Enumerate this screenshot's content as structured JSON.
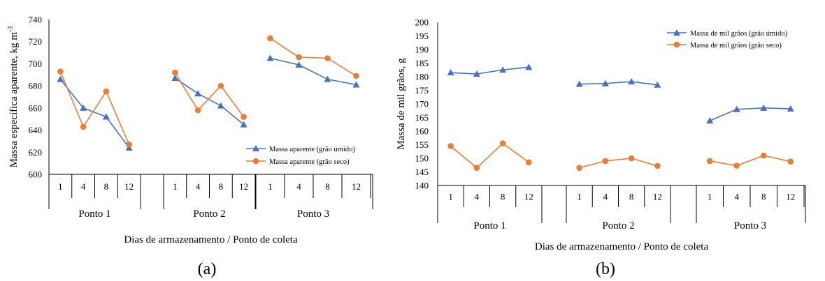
{
  "chart_data": [
    {
      "type": "line",
      "panel_label": "(a)",
      "ylabel": "Massa específica aparente, kg m",
      "ylabel_sup": "-3",
      "xlabel": "Dias de armazenamento / Ponto de coleta",
      "ylim": [
        600,
        740
      ],
      "yticks": [
        600,
        620,
        640,
        660,
        680,
        700,
        720,
        740
      ],
      "day_labels": [
        "1",
        "4",
        "8",
        "12"
      ],
      "groups": [
        "Ponto 1",
        "Ponto 2",
        "Ponto 3"
      ],
      "legend_position": "lower-right",
      "series": [
        {
          "name": "Massa aparente (grão úmido)",
          "color": "#4472C4",
          "marker": "triangle",
          "values": [
            [
              686,
              660,
              652,
              624
            ],
            [
              687,
              673,
              662,
              645
            ],
            [
              705,
              699,
              686,
              681
            ]
          ]
        },
        {
          "name": "Massa aparente (grão seco)",
          "color": "#ED7D31",
          "marker": "circle",
          "values": [
            [
              693,
              643,
              675,
              627
            ],
            [
              692,
              658,
              680,
              652
            ],
            [
              723,
              706,
              705,
              689
            ]
          ]
        }
      ]
    },
    {
      "type": "line",
      "panel_label": "(b)",
      "ylabel": "Massa de mil grãos, g",
      "xlabel": "Dias de armazenamento / Ponto de coleta",
      "ylim": [
        140,
        200
      ],
      "yticks": [
        140,
        145,
        150,
        155,
        160,
        165,
        170,
        175,
        180,
        185,
        190,
        195,
        200
      ],
      "day_labels": [
        "1",
        "4",
        "8",
        "12"
      ],
      "groups": [
        "Ponto 1",
        "Ponto 2",
        "Ponto 3"
      ],
      "legend_position": "top-right",
      "series": [
        {
          "name": "Massa de mil grãos (grão úmido)",
          "color": "#4472C4",
          "marker": "triangle",
          "values": [
            [
              181.5,
              181,
              182.5,
              183.5
            ],
            [
              177.3,
              177.5,
              178.2,
              177
            ],
            [
              163.8,
              168,
              168.5,
              168.2
            ]
          ]
        },
        {
          "name": "Massa de mil grãos (grão seco)",
          "color": "#ED7D31",
          "marker": "circle",
          "values": [
            [
              154.5,
              146.5,
              155.5,
              148.5
            ],
            [
              146.5,
              149,
              150,
              147.2
            ],
            [
              149,
              147.3,
              151,
              148.8
            ]
          ]
        }
      ]
    }
  ]
}
